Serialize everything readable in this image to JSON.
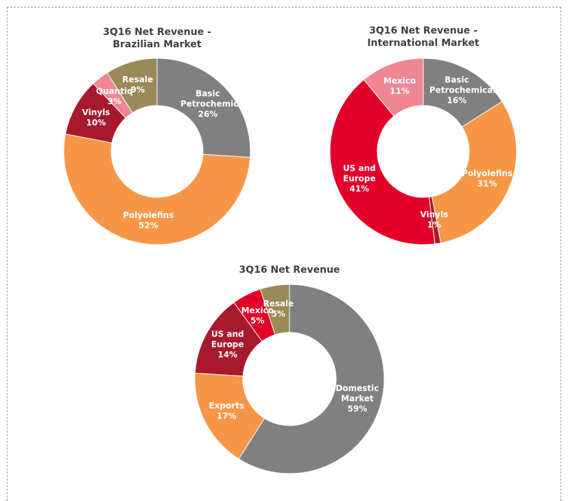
{
  "chart_data": [
    {
      "type": "donut",
      "title": "3Q16 Net Revenue - Brazilian Market",
      "categories": [
        "Basic Petrochemicals",
        "Polyolefins",
        "Vinyls",
        "Quantiq",
        "Resale"
      ],
      "values": [
        26,
        52,
        10,
        3,
        9
      ],
      "value_labels": [
        "26%",
        "52%",
        "10%",
        "3%",
        "9%"
      ],
      "colors": [
        "#808080",
        "#f79646",
        "#a8192e",
        "#ee8693",
        "#998a57"
      ]
    },
    {
      "type": "donut",
      "title": "3Q16 Net Revenue - International Market",
      "categories": [
        "Basic Petrochemicals",
        "Polyolefins",
        "Vinyls",
        "US and Europe",
        "Mexico"
      ],
      "values": [
        16,
        31,
        1,
        41,
        11
      ],
      "value_labels": [
        "16%",
        "31%",
        "1%",
        "41%",
        "11%"
      ],
      "colors": [
        "#808080",
        "#f79646",
        "#a8192e",
        "#e2002a",
        "#ee8693"
      ]
    },
    {
      "type": "donut",
      "title": "3Q16 Net Revenue",
      "categories": [
        "Domestic Market",
        "Exports",
        "US and Europe",
        "Mexico",
        "Resale"
      ],
      "values": [
        59,
        17,
        14,
        5,
        5
      ],
      "value_labels": [
        "59%",
        "17%",
        "14%",
        "5%",
        "5%"
      ],
      "colors": [
        "#808080",
        "#f79646",
        "#a8192e",
        "#e2002a",
        "#998a57"
      ]
    }
  ]
}
